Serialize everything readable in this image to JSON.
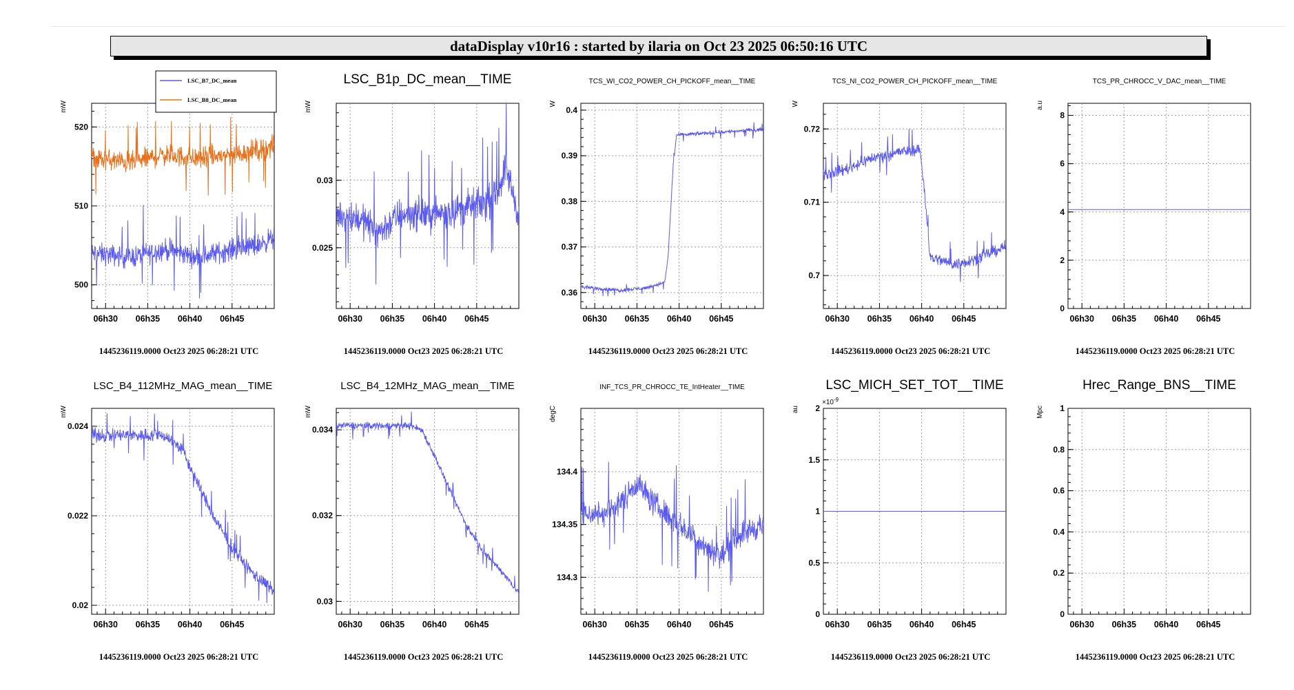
{
  "header": {
    "title": "dataDisplay v10r16 : started by ilaria on Oct 23 2025 06:50:16 UTC"
  },
  "colors": {
    "blue": "#5a5af0",
    "orange": "#e8701a"
  },
  "chart_data": [
    {
      "type": "line",
      "title": "",
      "ylabel": "mW",
      "ylim": [
        497,
        523
      ],
      "yticks": [
        500,
        510,
        520
      ],
      "ytick_labels": [
        "500",
        "510",
        "520"
      ],
      "x": {
        "labels": [
          "06h30",
          "06h35",
          "06h40",
          "06h45"
        ],
        "range_min": [
          28.35,
          50
        ]
      },
      "legend": [
        "LSC_B7_DC_mean",
        "LSC_B8_DC_mean"
      ],
      "series": [
        {
          "name": "LSC_B7_DC_mean",
          "color": "blue",
          "noise": 2.0,
          "pts": [
            [
              28.4,
              504
            ],
            [
              33,
              503.5
            ],
            [
              37,
              504.5
            ],
            [
              41,
              503.5
            ],
            [
              45,
              504.5
            ],
            [
              48,
              505
            ],
            [
              50,
              506
            ]
          ]
        },
        {
          "name": "LSC_B8_DC_mean",
          "color": "orange",
          "noise": 2.0,
          "pts": [
            [
              28.4,
              516
            ],
            [
              33,
              515.5
            ],
            [
              37,
              516.5
            ],
            [
              41,
              516
            ],
            [
              45,
              516.5
            ],
            [
              50,
              517.5
            ]
          ]
        }
      ],
      "footer": "1445236119.0000 Oct23 2025 06:28:21 UTC"
    },
    {
      "type": "line",
      "title": "LSC_B1p_DC_mean__TIME",
      "ylabel": "mW",
      "ylim": [
        0.0205,
        0.0357
      ],
      "yticks": [
        0.025,
        0.03
      ],
      "ytick_labels": [
        "0.025",
        "0.03"
      ],
      "x": {
        "labels": [
          "06h30",
          "06h35",
          "06h40",
          "06h45"
        ],
        "range_min": [
          28.35,
          50
        ]
      },
      "series": [
        {
          "name": "LSC_B1p_DC_mean",
          "color": "blue",
          "noise": 0.0018,
          "pts": [
            [
              28.4,
              0.0275
            ],
            [
              31,
              0.0272
            ],
            [
              33.5,
              0.0262
            ],
            [
              36,
              0.0275
            ],
            [
              40,
              0.0275
            ],
            [
              44,
              0.028
            ],
            [
              47,
              0.0285
            ],
            [
              48.5,
              0.031
            ],
            [
              49.5,
              0.0285
            ],
            [
              50,
              0.0275
            ]
          ]
        }
      ],
      "footer": "1445236119.0000 Oct23 2025 06:28:21 UTC"
    },
    {
      "type": "line",
      "title": "TCS_WI_CO2_POWER_CH_PICKOFF_mean__TIME",
      "ylabel": "W",
      "ylim": [
        0.3565,
        0.4015
      ],
      "yticks": [
        0.36,
        0.37,
        0.38,
        0.39,
        0.4
      ],
      "ytick_labels": [
        "0.36",
        "0.37",
        "0.38",
        "0.39",
        "0.4"
      ],
      "x": {
        "labels": [
          "06h30",
          "06h35",
          "06h40",
          "06h45"
        ],
        "range_min": [
          28.35,
          50
        ]
      },
      "series": [
        {
          "name": "TCS_WI_CO2_POWER_CH_PICKOFF_mean",
          "color": "blue",
          "noise": 0.0006,
          "pts": [
            [
              28.4,
              0.3612
            ],
            [
              33,
              0.3605
            ],
            [
              36,
              0.361
            ],
            [
              38.3,
              0.3622
            ],
            [
              38.7,
              0.368
            ],
            [
              39.3,
              0.388
            ],
            [
              39.7,
              0.3945
            ],
            [
              42,
              0.3948
            ],
            [
              45,
              0.3952
            ],
            [
              50,
              0.3958
            ]
          ]
        }
      ],
      "footer": "1445236119.0000 Oct23 2025 06:28:21 UTC"
    },
    {
      "type": "line",
      "title": "TCS_NI_CO2_POWER_CH_PICKOFF_mean__TIME",
      "ylabel": "W",
      "ylim": [
        0.6955,
        0.7235
      ],
      "yticks": [
        0.7,
        0.71,
        0.72
      ],
      "ytick_labels": [
        "0.7",
        "0.71",
        "0.72"
      ],
      "x": {
        "labels": [
          "06h30",
          "06h35",
          "06h40",
          "06h45"
        ],
        "range_min": [
          28.35,
          50
        ]
      },
      "series": [
        {
          "name": "TCS_NI_CO2_POWER_CH_PICKOFF_mean",
          "color": "blue",
          "noise": 0.0012,
          "pts": [
            [
              28.4,
              0.7138
            ],
            [
              31,
              0.7145
            ],
            [
              34,
              0.716
            ],
            [
              37,
              0.7168
            ],
            [
              39.8,
              0.7172
            ],
            [
              40.3,
              0.712
            ],
            [
              41,
              0.7025
            ],
            [
              44,
              0.7015
            ],
            [
              47,
              0.7025
            ],
            [
              50,
              0.704
            ]
          ]
        }
      ],
      "footer": "1445236119.0000 Oct23 2025 06:28:21 UTC"
    },
    {
      "type": "line",
      "title": "TCS_PR_CHROCC_V_DAC_mean__TIME",
      "ylabel": "a.u",
      "ylim": [
        0,
        8.5
      ],
      "yticks": [
        0,
        2,
        4,
        6,
        8
      ],
      "ytick_labels": [
        "0",
        "2",
        "4",
        "6",
        "8"
      ],
      "x": {
        "labels": [
          "06h30",
          "06h35",
          "06h40",
          "06h45"
        ],
        "range_min": [
          28.35,
          50
        ]
      },
      "series": [
        {
          "name": "TCS_PR_CHROCC_V_DAC_mean",
          "color": "blue",
          "noise": 0,
          "pts": [
            [
              28.35,
              4.1
            ],
            [
              50,
              4.1
            ]
          ]
        }
      ],
      "footer": "1445236119.0000 Oct23 2025 06:28:21 UTC"
    },
    {
      "type": "line",
      "title": "LSC_B4_112MHz_MAG_mean__TIME",
      "ylabel": "mW",
      "ylim": [
        0.0198,
        0.0244
      ],
      "yticks": [
        0.02,
        0.022,
        0.024
      ],
      "ytick_labels": [
        "0.02",
        "0.022",
        "0.024"
      ],
      "x": {
        "labels": [
          "06h30",
          "06h35",
          "06h40",
          "06h45"
        ],
        "range_min": [
          28.35,
          50
        ]
      },
      "series": [
        {
          "name": "LSC_B4_112MHz_MAG_mean",
          "color": "blue",
          "noise": 0.00022,
          "pts": [
            [
              28.4,
              0.0238
            ],
            [
              33,
              0.0238
            ],
            [
              37,
              0.0238
            ],
            [
              39,
              0.0235
            ],
            [
              41,
              0.0227
            ],
            [
              43,
              0.0219
            ],
            [
              45,
              0.0213
            ],
            [
              47,
              0.0208
            ],
            [
              50,
              0.0203
            ]
          ]
        }
      ],
      "footer": "1445236119.0000 Oct23 2025 06:28:21 UTC"
    },
    {
      "type": "line",
      "title": "LSC_B4_12MHz_MAG_mean__TIME",
      "ylabel": "mW",
      "ylim": [
        0.0297,
        0.0345
      ],
      "yticks": [
        0.03,
        0.032,
        0.034
      ],
      "ytick_labels": [
        "0.03",
        "0.032",
        "0.034"
      ],
      "x": {
        "labels": [
          "06h30",
          "06h35",
          "06h40",
          "06h45"
        ],
        "range_min": [
          28.35,
          50
        ]
      },
      "series": [
        {
          "name": "LSC_B4_12MHz_MAG_mean",
          "color": "blue",
          "noise": 0.00012,
          "pts": [
            [
              28.4,
              0.0341
            ],
            [
              33,
              0.0341
            ],
            [
              37,
              0.0341
            ],
            [
              38.5,
              0.034
            ],
            [
              40,
              0.0334
            ],
            [
              42,
              0.0325
            ],
            [
              44,
              0.0317
            ],
            [
              46,
              0.0311
            ],
            [
              48,
              0.0307
            ],
            [
              50,
              0.0302
            ]
          ]
        }
      ],
      "footer": "1445236119.0000 Oct23 2025 06:28:21 UTC"
    },
    {
      "type": "line",
      "title": "INF_TCS_PR_CHROCC_TE_IntHeater__TIME",
      "ylabel": "degC",
      "ylim": [
        134.265,
        134.46
      ],
      "yticks": [
        134.3,
        134.35,
        134.4
      ],
      "ytick_labels": [
        "134.3",
        "134.35",
        "134.4"
      ],
      "x": {
        "labels": [
          "06h30",
          "06h35",
          "06h40",
          "06h45"
        ],
        "range_min": [
          28.35,
          50
        ]
      },
      "series": [
        {
          "name": "INF_TCS_PR_CHROCC_TE_IntHeater",
          "color": "blue",
          "noise": 0.018,
          "pts": [
            [
              28.4,
              134.36
            ],
            [
              31,
              134.36
            ],
            [
              33,
              134.37
            ],
            [
              35,
              134.39
            ],
            [
              37,
              134.37
            ],
            [
              40,
              134.35
            ],
            [
              43,
              134.33
            ],
            [
              45,
              134.32
            ],
            [
              47,
              134.34
            ],
            [
              50,
              134.35
            ]
          ]
        }
      ],
      "footer": "1445236119.0000 Oct23 2025 06:28:21 UTC"
    },
    {
      "type": "line",
      "title": "LSC_MICH_SET_TOT__TIME",
      "ylabel": "au",
      "exponent": "×10",
      "exponent_power": "-9",
      "ylim": [
        0,
        2
      ],
      "yticks": [
        0,
        0.5,
        1,
        1.5,
        2
      ],
      "ytick_labels": [
        "0",
        "0.5",
        "1",
        "1.5",
        "2"
      ],
      "x": {
        "labels": [
          "06h30",
          "06h35",
          "06h40",
          "06h45"
        ],
        "range_min": [
          28.35,
          50
        ]
      },
      "series": [
        {
          "name": "LSC_MICH_SET_TOT",
          "color": "blue",
          "noise": 0,
          "pts": [
            [
              28.35,
              1
            ],
            [
              50,
              1
            ]
          ]
        }
      ],
      "footer": "1445236119.0000 Oct23 2025 06:28:21 UTC"
    },
    {
      "type": "line",
      "title": "Hrec_Range_BNS__TIME",
      "ylabel": "Mpc",
      "ylim": [
        0,
        1
      ],
      "yticks": [
        0,
        0.2,
        0.4,
        0.6,
        0.8,
        1
      ],
      "ytick_labels": [
        "0",
        "0.2",
        "0.4",
        "0.6",
        "0.8",
        "1"
      ],
      "x": {
        "labels": [
          "06h30",
          "06h35",
          "06h40",
          "06h45"
        ],
        "range_min": [
          28.35,
          50
        ]
      },
      "series": [],
      "footer": "1445236119.0000 Oct23 2025 06:28:21 UTC"
    }
  ]
}
